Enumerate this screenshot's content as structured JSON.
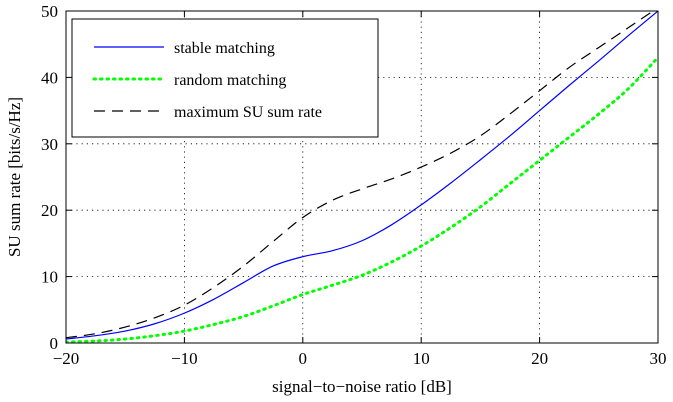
{
  "chart_data": {
    "type": "line",
    "title": "",
    "xlabel": "signal−to−noise ratio [dB]",
    "ylabel": "SU sum rate [bits/s/Hz]",
    "xlim": [
      -20,
      30
    ],
    "ylim": [
      0,
      50
    ],
    "xticks": [
      -20,
      -10,
      0,
      10,
      20,
      30
    ],
    "xtick_labels": [
      "−20",
      "−10",
      "0",
      "10",
      "20",
      "30"
    ],
    "yticks": [
      0,
      10,
      20,
      30,
      40,
      50
    ],
    "ytick_labels": [
      "0",
      "10",
      "20",
      "30",
      "40",
      "50"
    ],
    "grid": true,
    "legend_position": "top-left",
    "x": [
      -20,
      -17.5,
      -15,
      -12.5,
      -10,
      -7.5,
      -5,
      -2.5,
      0,
      2.5,
      5,
      7.5,
      10,
      12.5,
      15,
      17.5,
      20,
      22.5,
      25,
      27.5,
      30
    ],
    "series": [
      {
        "name": "stable matching",
        "color": "#0000ff",
        "style": "solid",
        "values": [
          0.6,
          1.1,
          1.8,
          2.9,
          4.5,
          6.6,
          9.1,
          11.6,
          13.0,
          13.9,
          15.4,
          17.8,
          20.8,
          24.1,
          27.6,
          31.2,
          35.0,
          38.8,
          42.5,
          46.3,
          50.0
        ]
      },
      {
        "name": "random matching",
        "color": "#00ff00",
        "style": "dotted",
        "values": [
          0.15,
          0.3,
          0.6,
          1.1,
          1.8,
          2.8,
          4.0,
          5.6,
          7.3,
          8.7,
          10.2,
          12.2,
          14.6,
          17.4,
          20.5,
          24.0,
          27.5,
          31.0,
          34.5,
          38.3,
          43.0
        ]
      },
      {
        "name": "maximum SU sum rate",
        "color": "#000000",
        "style": "dashed",
        "values": [
          0.8,
          1.4,
          2.4,
          3.8,
          5.7,
          8.4,
          11.6,
          15.3,
          18.9,
          21.5,
          23.2,
          24.7,
          26.5,
          28.6,
          31.2,
          34.5,
          38.0,
          41.5,
          44.5,
          47.5,
          50.5
        ]
      }
    ]
  }
}
